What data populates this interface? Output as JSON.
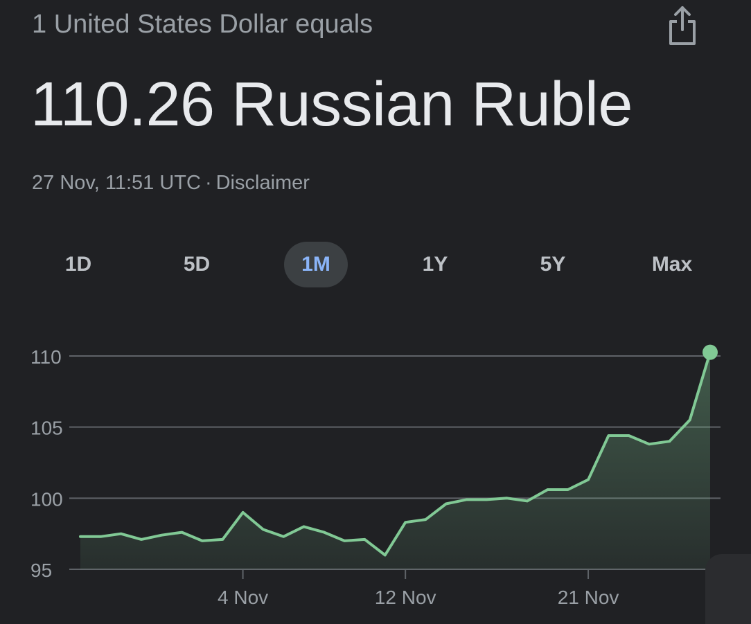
{
  "header": {
    "subtitle": "1 United States Dollar equals",
    "headline": "110.26 Russian Ruble",
    "timestamp": "27 Nov, 11:51 UTC",
    "separator": "·",
    "disclaimer": "Disclaimer",
    "share_icon": "share-icon"
  },
  "ranges": [
    {
      "label": "1D",
      "active": false
    },
    {
      "label": "5D",
      "active": false
    },
    {
      "label": "1M",
      "active": true
    },
    {
      "label": "1Y",
      "active": false
    },
    {
      "label": "5Y",
      "active": false
    },
    {
      "label": "Max",
      "active": false
    }
  ],
  "colors": {
    "background": "#202124",
    "line": "#81c995",
    "active_tab_text": "#8ab4f8",
    "active_tab_bg": "#3c4043",
    "grid": "#5f6368"
  },
  "chart_data": {
    "type": "area",
    "y_ticks": [
      110,
      105,
      100,
      95
    ],
    "x_ticks": [
      {
        "label": "4 Nov",
        "x": 8
      },
      {
        "label": "12 Nov",
        "x": 16
      },
      {
        "label": "21 Nov",
        "x": 25
      }
    ],
    "ylim": [
      95,
      110
    ],
    "grid": true,
    "series": [
      {
        "x": [
          0,
          1,
          2,
          3,
          4,
          5,
          6,
          7,
          8,
          9,
          10,
          11,
          12,
          13,
          14,
          15,
          16,
          17,
          18,
          19,
          20,
          21,
          22,
          23,
          24,
          25,
          26,
          27,
          28,
          29,
          30,
          31
        ],
        "values": [
          97.3,
          97.3,
          97.5,
          97.1,
          97.4,
          97.6,
          97.0,
          97.1,
          99.0,
          97.8,
          97.3,
          98.0,
          97.6,
          97.0,
          97.1,
          96.0,
          98.3,
          98.5,
          99.6,
          99.9,
          99.9,
          100.0,
          99.8,
          100.6,
          100.6,
          101.3,
          104.4,
          104.4,
          103.8,
          104.0,
          105.5,
          110.26
        ]
      }
    ]
  }
}
